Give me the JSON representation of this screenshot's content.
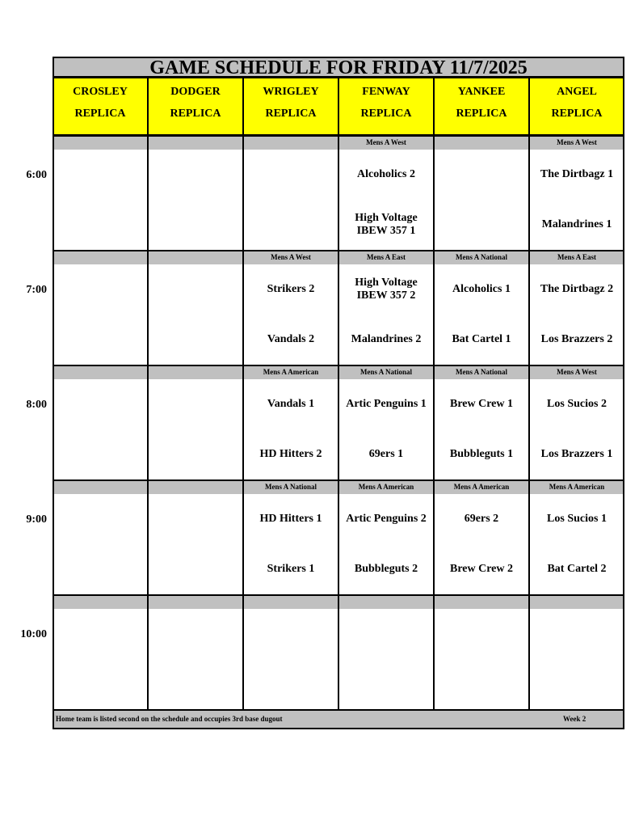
{
  "title": "GAME SCHEDULE FOR FRIDAY 11/7/2025",
  "fields": [
    {
      "name": "CROSLEY",
      "sub": "REPLICA"
    },
    {
      "name": "DODGER",
      "sub": "REPLICA"
    },
    {
      "name": "WRIGLEY",
      "sub": "REPLICA"
    },
    {
      "name": "FENWAY",
      "sub": "REPLICA"
    },
    {
      "name": "YANKEE",
      "sub": "REPLICA"
    },
    {
      "name": "ANGEL",
      "sub": "REPLICA"
    }
  ],
  "slots": [
    {
      "time": "6:00",
      "divisions": [
        "",
        "",
        "",
        "Mens A West",
        "",
        "Mens A West"
      ],
      "games": [
        [
          "",
          ""
        ],
        [
          "",
          ""
        ],
        [
          "",
          ""
        ],
        [
          "Alcoholics 2",
          "High Voltage IBEW 357 1"
        ],
        [
          "",
          ""
        ],
        [
          "The Dirtbagz 1",
          "Malandrines 1"
        ]
      ]
    },
    {
      "time": "7:00",
      "divisions": [
        "",
        "",
        "Mens A West",
        "Mens A East",
        "Mens A National",
        "Mens A East"
      ],
      "games": [
        [
          "",
          ""
        ],
        [
          "",
          ""
        ],
        [
          "Strikers 2",
          "Vandals 2"
        ],
        [
          "High Voltage IBEW 357 2",
          "Malandrines 2"
        ],
        [
          "Alcoholics 1",
          "Bat Cartel 1"
        ],
        [
          "The Dirtbagz 2",
          "Los Brazzers 2"
        ]
      ]
    },
    {
      "time": "8:00",
      "divisions": [
        "",
        "",
        "Mens A American",
        "Mens A National",
        "Mens A National",
        "Mens A West"
      ],
      "games": [
        [
          "",
          ""
        ],
        [
          "",
          ""
        ],
        [
          "Vandals 1",
          "HD Hitters 2"
        ],
        [
          "Artic Penguins 1",
          "69ers 1"
        ],
        [
          "Brew Crew 1",
          "Bubbleguts 1"
        ],
        [
          "Los Sucios 2",
          "Los Brazzers 1"
        ]
      ]
    },
    {
      "time": "9:00",
      "divisions": [
        "",
        "",
        "Mens A National",
        "Mens A American",
        "Mens A American",
        "Mens A American"
      ],
      "games": [
        [
          "",
          ""
        ],
        [
          "",
          ""
        ],
        [
          "HD Hitters 1",
          "Strikers 1"
        ],
        [
          "Artic Penguins 2",
          "Bubbleguts 2"
        ],
        [
          "69ers 2",
          "Brew Crew 2"
        ],
        [
          "Los Sucios 1",
          "Bat Cartel 2"
        ]
      ]
    },
    {
      "time": "10:00",
      "divisions": [
        "",
        "",
        "",
        "",
        "",
        ""
      ],
      "games": [
        [
          "",
          ""
        ],
        [
          "",
          ""
        ],
        [
          "",
          ""
        ],
        [
          "",
          ""
        ],
        [
          "",
          ""
        ],
        [
          "",
          ""
        ]
      ]
    }
  ],
  "footer": {
    "note": "Home team is listed second on the schedule and occupies 3rd base dugout",
    "week": "Week 2"
  },
  "colors": {
    "header_bg": "#ffff00",
    "band_bg": "#c0c0c0"
  }
}
